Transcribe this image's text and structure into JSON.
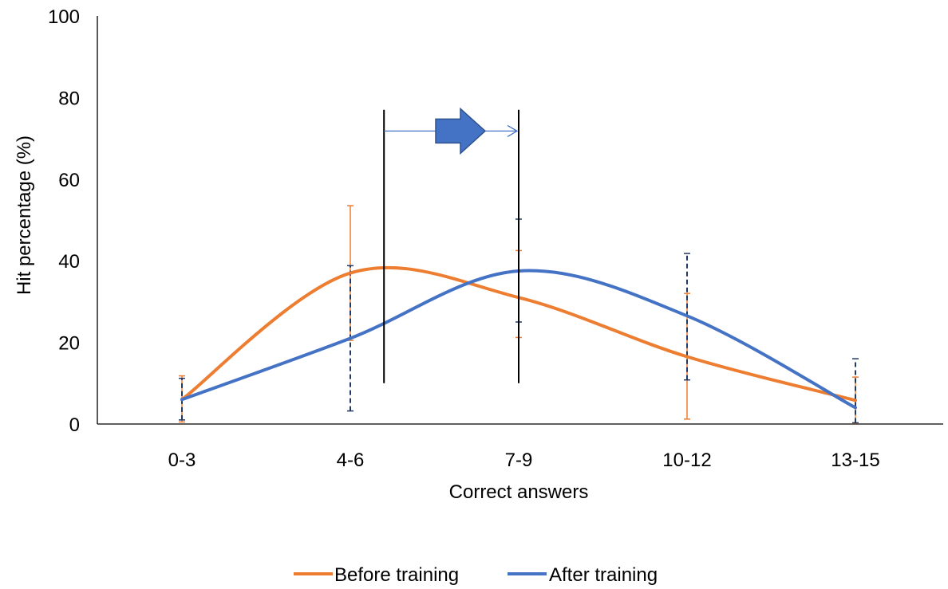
{
  "chart_data": {
    "type": "line",
    "title": "",
    "xlabel": "Correct answers",
    "ylabel": "Hit percentage (%)",
    "categories": [
      "0-3",
      "4-6",
      "7-9",
      "10-12",
      "13-15"
    ],
    "ylim": [
      0,
      100
    ],
    "yticks": [
      0,
      20,
      40,
      60,
      80,
      100
    ],
    "grid": false,
    "smooth": true,
    "legend_position": "bottom",
    "series": [
      {
        "name": "Before training",
        "color": "#ED7D31",
        "values": [
          6,
          37,
          31,
          16.5,
          5.8
        ],
        "error_low": [
          0.5,
          20.5,
          21.2,
          1.2,
          0.2
        ],
        "error_high": [
          11.8,
          53.5,
          42.5,
          32,
          11.5
        ],
        "error_style": "solid"
      },
      {
        "name": "After training",
        "color": "#4472C4",
        "values": [
          6,
          21,
          37.5,
          26.5,
          4
        ],
        "error_low": [
          1,
          3.2,
          25,
          10.8,
          0.3
        ],
        "error_high": [
          11.2,
          38.8,
          50.2,
          41.8,
          16
        ],
        "error_style": "dashed"
      }
    ],
    "annotation": {
      "shift_from": 1.2,
      "shift_to": 2.0,
      "line_y_bottom": 10,
      "line_y_top": 77,
      "arrow_y": 71.8,
      "arrow_color": "#4472C4"
    }
  }
}
